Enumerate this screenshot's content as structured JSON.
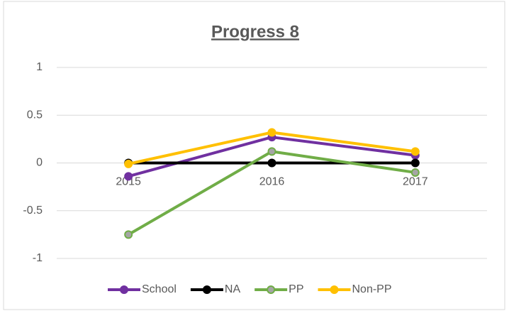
{
  "chart_data": {
    "type": "line",
    "title": "Progress 8",
    "categories": [
      "2015",
      "2016",
      "2017"
    ],
    "series": [
      {
        "name": "School",
        "color": "#7030a0",
        "values": [
          -0.14,
          0.27,
          0.08
        ]
      },
      {
        "name": "NA",
        "color": "#000000",
        "values": [
          0,
          0,
          0
        ]
      },
      {
        "name": "PP",
        "color": "#70ad47",
        "values": [
          -0.75,
          0.12,
          -0.1
        ]
      },
      {
        "name": "Non-PP",
        "color": "#ffc000",
        "values": [
          -0.01,
          0.32,
          0.12
        ]
      }
    ],
    "ylim": [
      -1,
      1
    ],
    "yticks": [
      -1,
      -0.5,
      0,
      0.5,
      1
    ],
    "grid": true,
    "legend": "bottom"
  }
}
